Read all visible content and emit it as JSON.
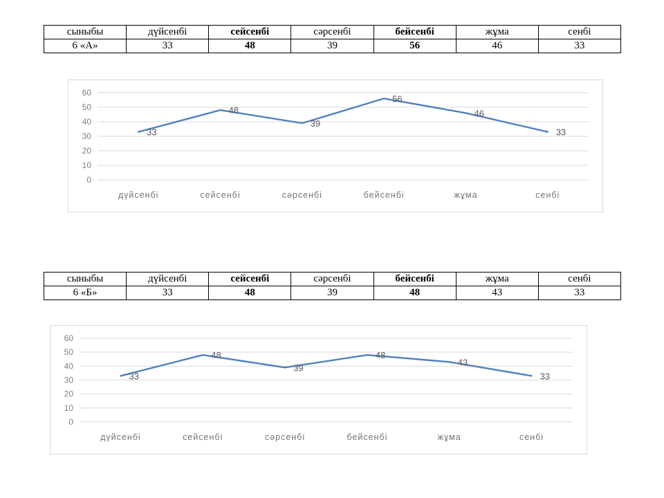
{
  "tables": [
    {
      "name": "attendance-table-6a",
      "header": [
        "сыныбы",
        "дүйсенбі",
        "сейсенбі",
        "сәрсенбі",
        "бейсенбі",
        "жұма",
        "сенбі"
      ],
      "row": [
        "6 «А»",
        "33",
        "48",
        "39",
        "56",
        "46",
        "33"
      ],
      "bold_columns": [
        2,
        4
      ]
    },
    {
      "name": "attendance-table-6b",
      "header": [
        "сыныбы",
        "дүйсенбі",
        "сейсенбі",
        "сәрсенбі",
        "бейсенбі",
        "жұма",
        "сенбі"
      ],
      "row": [
        "6 «Б»",
        "33",
        "48",
        "39",
        "48",
        "43",
        "33"
      ],
      "bold_columns": [
        2,
        4
      ]
    }
  ],
  "chart_data": [
    {
      "type": "line",
      "title": "",
      "categories": [
        "дүйсенбі",
        "сейсенбі",
        "сәрсенбі",
        "бейсенбі",
        "жұма",
        "сенбі"
      ],
      "series": [
        {
          "name": "6 «А»",
          "values": [
            33,
            48,
            39,
            56,
            46,
            33
          ]
        }
      ],
      "xlabel": "",
      "ylabel": "",
      "ylim": [
        0,
        60
      ],
      "ytick_step": 10,
      "yticks": [
        0,
        10,
        20,
        30,
        40,
        50,
        60
      ],
      "grid": true,
      "legend_position": "none",
      "data_labels": true,
      "line_color": "#4f81bd",
      "grid_color": "#d9d9d9",
      "tick_color": "#7f7f7f",
      "label_color": "#595959"
    },
    {
      "type": "line",
      "title": "",
      "categories": [
        "дүйсенбі",
        "сейсенбі",
        "сәрсенбі",
        "бейсенбі",
        "жұма",
        "сенбі"
      ],
      "series": [
        {
          "name": "6 «Б»",
          "values": [
            33,
            48,
            39,
            48,
            43,
            33
          ]
        }
      ],
      "xlabel": "",
      "ylabel": "",
      "ylim": [
        0,
        60
      ],
      "ytick_step": 10,
      "yticks": [
        0,
        10,
        20,
        30,
        40,
        50,
        60
      ],
      "grid": true,
      "legend_position": "none",
      "data_labels": true,
      "line_color": "#4f81bd",
      "grid_color": "#d9d9d9",
      "tick_color": "#7f7f7f",
      "label_color": "#595959"
    }
  ]
}
